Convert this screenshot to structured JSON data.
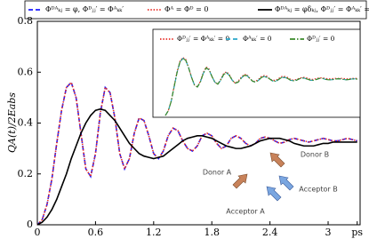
{
  "chart_data": [
    {
      "type": "line",
      "y_label": "QA(t)/2Eabs",
      "x": [
        0,
        0.05,
        0.1,
        0.15,
        0.2,
        0.25,
        0.3,
        0.35,
        0.4,
        0.45,
        0.5,
        0.55,
        0.6,
        0.65,
        0.7,
        0.75,
        0.8,
        0.85,
        0.9,
        0.95,
        1.0,
        1.05,
        1.1,
        1.15,
        1.2,
        1.25,
        1.3,
        1.35,
        1.4,
        1.45,
        1.5,
        1.55,
        1.6,
        1.65,
        1.7,
        1.75,
        1.8,
        1.85,
        1.9,
        1.95,
        2.0,
        2.05,
        2.1,
        2.15,
        2.2,
        2.25,
        2.3,
        2.35,
        2.4,
        2.45,
        2.5,
        2.55,
        2.6,
        2.65,
        2.7,
        2.75,
        2.8,
        2.85,
        2.9,
        2.95,
        3.0,
        3.05,
        3.1,
        3.15,
        3.2,
        3.25,
        3.3
      ],
      "series": [
        {
          "name": "Φᴰᴬₖⱼ = φ, Φᴰⱼⱼ′ = Φᴬₖₖ′",
          "color": "#1a1aff",
          "linestyle": "dashed",
          "values": [
            0,
            0.02,
            0.08,
            0.18,
            0.32,
            0.45,
            0.54,
            0.56,
            0.5,
            0.36,
            0.22,
            0.19,
            0.28,
            0.44,
            0.54,
            0.52,
            0.42,
            0.28,
            0.22,
            0.26,
            0.36,
            0.42,
            0.41,
            0.35,
            0.28,
            0.26,
            0.29,
            0.35,
            0.38,
            0.37,
            0.33,
            0.3,
            0.29,
            0.31,
            0.35,
            0.36,
            0.35,
            0.32,
            0.3,
            0.31,
            0.34,
            0.35,
            0.34,
            0.32,
            0.31,
            0.32,
            0.34,
            0.345,
            0.34,
            0.33,
            0.32,
            0.325,
            0.335,
            0.34,
            0.335,
            0.33,
            0.325,
            0.33,
            0.335,
            0.34,
            0.335,
            0.33,
            0.33,
            0.335,
            0.34,
            0.335,
            0.33
          ]
        },
        {
          "name": "Φᴬ = Φᴰ = 0",
          "color": "#e8302a",
          "linestyle": "dotted",
          "values": [
            0,
            0.02,
            0.08,
            0.18,
            0.32,
            0.45,
            0.54,
            0.56,
            0.5,
            0.36,
            0.22,
            0.19,
            0.28,
            0.44,
            0.54,
            0.52,
            0.42,
            0.28,
            0.22,
            0.26,
            0.36,
            0.42,
            0.41,
            0.35,
            0.28,
            0.26,
            0.29,
            0.35,
            0.38,
            0.37,
            0.33,
            0.3,
            0.29,
            0.31,
            0.35,
            0.36,
            0.35,
            0.32,
            0.3,
            0.31,
            0.34,
            0.35,
            0.34,
            0.32,
            0.31,
            0.32,
            0.34,
            0.345,
            0.34,
            0.33,
            0.32,
            0.325,
            0.335,
            0.34,
            0.335,
            0.33,
            0.325,
            0.33,
            0.335,
            0.34,
            0.335,
            0.33,
            0.33,
            0.335,
            0.34,
            0.335,
            0.33
          ]
        },
        {
          "name": "Φᴰᴬₖⱼ = φδₖⱼ, Φᴰⱼⱼ′ = Φᴬₖₖ′ = 0",
          "color": "#000000",
          "linestyle": "solid",
          "values": [
            0,
            0.01,
            0.03,
            0.06,
            0.1,
            0.15,
            0.2,
            0.26,
            0.31,
            0.36,
            0.4,
            0.43,
            0.45,
            0.455,
            0.45,
            0.43,
            0.41,
            0.38,
            0.35,
            0.32,
            0.3,
            0.28,
            0.27,
            0.265,
            0.26,
            0.265,
            0.27,
            0.285,
            0.3,
            0.315,
            0.33,
            0.34,
            0.345,
            0.35,
            0.35,
            0.345,
            0.34,
            0.33,
            0.32,
            0.31,
            0.305,
            0.3,
            0.3,
            0.305,
            0.31,
            0.32,
            0.33,
            0.335,
            0.34,
            0.34,
            0.34,
            0.335,
            0.33,
            0.32,
            0.315,
            0.31,
            0.31,
            0.31,
            0.315,
            0.32,
            0.32,
            0.325,
            0.325,
            0.325,
            0.325,
            0.325,
            0.325
          ]
        }
      ],
      "xlim": [
        0,
        3.33
      ],
      "ylim": [
        0,
        0.8
      ],
      "xticks": [
        0,
        0.6,
        1.2,
        1.8,
        2.4,
        3,
        {
          "value": 3.3,
          "label": "ps"
        }
      ],
      "yticks": [
        0,
        0.2,
        0.4,
        0.6,
        0.8
      ],
      "legend": "top",
      "annotations": [
        "Donor B",
        "Donor A",
        "Acceptor B",
        "Acceptor A"
      ]
    },
    {
      "type": "line",
      "x": [
        0,
        0.05,
        0.1,
        0.15,
        0.2,
        0.25,
        0.3,
        0.35,
        0.4,
        0.45,
        0.5,
        0.55,
        0.6,
        0.65,
        0.7,
        0.75,
        0.8,
        0.85,
        0.9,
        0.95,
        1.0,
        1.05,
        1.1,
        1.15,
        1.2,
        1.25,
        1.3,
        1.35,
        1.4,
        1.45,
        1.5,
        1.55,
        1.6,
        1.65,
        1.7,
        1.75,
        1.8,
        1.85,
        1.9,
        1.95,
        2.0,
        2.05,
        2.1,
        2.15,
        2.2,
        2.25,
        2.3,
        2.35,
        2.4,
        2.45,
        2.5,
        2.55,
        2.6,
        2.65,
        2.7,
        2.75,
        2.8,
        2.85,
        2.9,
        2.95,
        3.0,
        3.05,
        3.1,
        3.15,
        3.2,
        3.25,
        3.3
      ],
      "series": [
        {
          "name": "Φᴰⱼⱼ′ = Φᴬₖₖ′ = 0",
          "color": "#e8302a",
          "linestyle": "dotted",
          "values": [
            0,
            0.05,
            0.15,
            0.31,
            0.46,
            0.57,
            0.61,
            0.59,
            0.5,
            0.4,
            0.32,
            0.3,
            0.36,
            0.45,
            0.51,
            0.49,
            0.41,
            0.35,
            0.33,
            0.38,
            0.44,
            0.46,
            0.43,
            0.37,
            0.34,
            0.36,
            0.4,
            0.43,
            0.43,
            0.39,
            0.36,
            0.36,
            0.38,
            0.41,
            0.42,
            0.41,
            0.38,
            0.37,
            0.37,
            0.39,
            0.41,
            0.41,
            0.4,
            0.38,
            0.37,
            0.38,
            0.39,
            0.4,
            0.4,
            0.39,
            0.38,
            0.38,
            0.39,
            0.395,
            0.395,
            0.39,
            0.385,
            0.385,
            0.39,
            0.39,
            0.39,
            0.39,
            0.385,
            0.385,
            0.39,
            0.39,
            0.39
          ]
        },
        {
          "name": "Φᴬₖₖ′ = 0",
          "color": "#2aa6c9",
          "linestyle": "dashed",
          "values": [
            0,
            0.05,
            0.15,
            0.3,
            0.45,
            0.56,
            0.6,
            0.58,
            0.5,
            0.4,
            0.32,
            0.3,
            0.35,
            0.44,
            0.5,
            0.48,
            0.41,
            0.35,
            0.33,
            0.37,
            0.43,
            0.45,
            0.42,
            0.37,
            0.34,
            0.35,
            0.39,
            0.42,
            0.42,
            0.39,
            0.36,
            0.35,
            0.37,
            0.4,
            0.41,
            0.4,
            0.38,
            0.36,
            0.36,
            0.38,
            0.4,
            0.4,
            0.39,
            0.37,
            0.365,
            0.37,
            0.385,
            0.395,
            0.39,
            0.38,
            0.37,
            0.37,
            0.38,
            0.39,
            0.39,
            0.38,
            0.375,
            0.375,
            0.38,
            0.385,
            0.385,
            0.38,
            0.375,
            0.378,
            0.383,
            0.385,
            0.382
          ]
        },
        {
          "name": "Φᴰⱼⱼ′ = 0",
          "color": "#3a8a2a",
          "linestyle": "dashdot",
          "values": [
            0,
            0.05,
            0.15,
            0.3,
            0.45,
            0.56,
            0.6,
            0.58,
            0.5,
            0.4,
            0.32,
            0.3,
            0.35,
            0.44,
            0.5,
            0.48,
            0.41,
            0.35,
            0.33,
            0.37,
            0.43,
            0.45,
            0.42,
            0.37,
            0.34,
            0.35,
            0.39,
            0.42,
            0.42,
            0.39,
            0.36,
            0.35,
            0.37,
            0.4,
            0.41,
            0.4,
            0.38,
            0.36,
            0.36,
            0.38,
            0.4,
            0.4,
            0.39,
            0.37,
            0.365,
            0.37,
            0.385,
            0.395,
            0.39,
            0.38,
            0.37,
            0.37,
            0.38,
            0.39,
            0.39,
            0.38,
            0.375,
            0.375,
            0.38,
            0.385,
            0.385,
            0.38,
            0.375,
            0.378,
            0.383,
            0.385,
            0.382
          ]
        }
      ],
      "xlim": [
        0,
        3.3
      ],
      "ylim": [
        0,
        0.7
      ],
      "legend": "top"
    }
  ]
}
